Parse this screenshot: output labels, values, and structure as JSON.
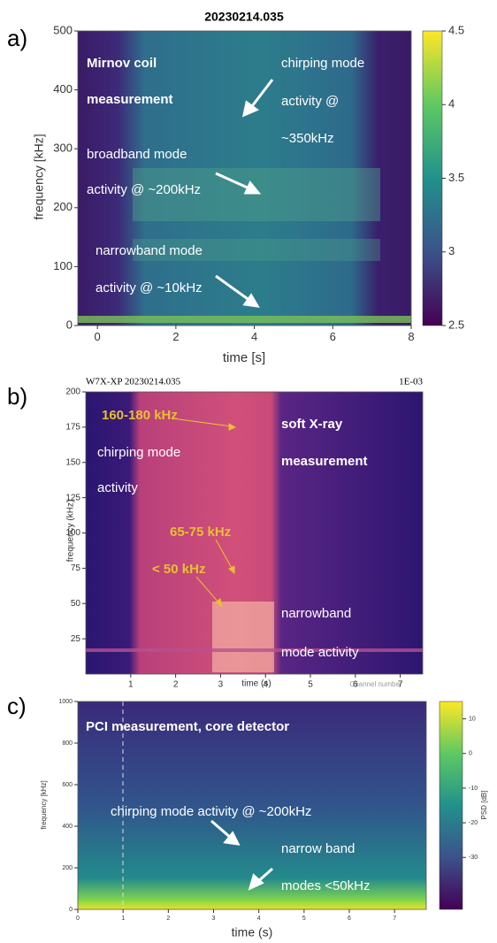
{
  "panels": [
    {
      "label": "a)",
      "title": "20230214.035",
      "xlabel": "time [s]",
      "ylabel": "frequency [kHz]",
      "xlim": [
        -0.5,
        8
      ],
      "ylim": [
        0,
        500
      ],
      "xticks": [
        0,
        2,
        4,
        6,
        8
      ],
      "yticks": [
        0,
        100,
        200,
        300,
        400,
        500
      ],
      "colorbar": {
        "lim": [
          2.5,
          4.5
        ],
        "ticks": [
          2.5,
          3,
          3.5,
          4,
          4.5
        ]
      },
      "annotations": [
        "Mirnov coil",
        "measurement",
        "chirping mode",
        "activity @",
        "~350kHz",
        "broadband mode",
        "activity @ ~200kHz",
        "narrowband mode",
        "activity @ ~10kHz"
      ]
    },
    {
      "label": "b)",
      "title": "W7X-XP 20230214.035",
      "scale": "1E-03",
      "xlabel": "time (s)",
      "ylabel": "frequency (kHz)",
      "xlim": [
        0,
        7.5
      ],
      "ylim": [
        0,
        200
      ],
      "xticks": [
        1,
        2,
        3,
        4,
        5,
        6,
        7
      ],
      "yticks": [
        25,
        50,
        75,
        100,
        125,
        150,
        175,
        200
      ],
      "note": "Channel number",
      "annotations": [
        "160-180 kHz",
        "chirping mode",
        "activity",
        "soft X-ray",
        "measurement",
        "65-75 kHz",
        "< 50 kHz",
        "narrowband",
        "mode activity"
      ]
    },
    {
      "label": "c)",
      "xlabel": "time (s)",
      "ylabel": "frequency [kHz]",
      "xlim": [
        0,
        7.7
      ],
      "ylim": [
        0,
        1000
      ],
      "xticks": [
        0,
        1,
        2,
        3,
        4,
        5,
        6,
        7
      ],
      "yticks": [
        0,
        200,
        400,
        600,
        800,
        1000
      ],
      "colorbar": {
        "label": "PSD [dB]",
        "lim": [
          -45,
          15
        ],
        "ticks": [
          -30,
          -20,
          -10,
          0,
          10
        ]
      },
      "annotations": [
        "PCI  measurement, core detector",
        "chirping mode activity @ ~200kHz",
        "narrow band",
        "modes <50kHz"
      ]
    }
  ]
}
